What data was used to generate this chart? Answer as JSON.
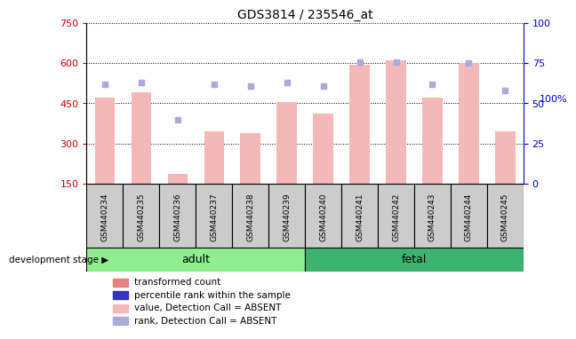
{
  "title": "GDS3814 / 235546_at",
  "samples": [
    "GSM440234",
    "GSM440235",
    "GSM440236",
    "GSM440237",
    "GSM440238",
    "GSM440239",
    "GSM440240",
    "GSM440241",
    "GSM440242",
    "GSM440243",
    "GSM440244",
    "GSM440245"
  ],
  "bar_values": [
    470,
    490,
    185,
    345,
    340,
    455,
    410,
    595,
    610,
    470,
    600,
    345
  ],
  "rank_values": [
    62,
    63,
    40,
    62,
    61,
    63,
    61,
    76,
    76,
    62,
    75,
    58
  ],
  "detection_call": [
    "ABSENT",
    "ABSENT",
    "ABSENT",
    "ABSENT",
    "ABSENT",
    "ABSENT",
    "ABSENT",
    "ABSENT",
    "ABSENT",
    "ABSENT",
    "ABSENT",
    "ABSENT"
  ],
  "group_labels": [
    "adult",
    "fetal"
  ],
  "group_ranges": [
    6,
    6
  ],
  "adult_color": "#90ee90",
  "fetal_color": "#3cb371",
  "bar_color_present": "#e88080",
  "bar_color_absent": "#f4b8b8",
  "rank_color_present": "#3333bb",
  "rank_color_absent": "#aaaadd",
  "sample_bg_color": "#cccccc",
  "ylim_left": [
    150,
    750
  ],
  "ylim_right": [
    0,
    100
  ],
  "yticks_left": [
    150,
    300,
    450,
    600,
    750
  ],
  "yticks_right": [
    0,
    25,
    50,
    75,
    100
  ],
  "ylabel_left_color": "#cc0000",
  "ylabel_right_color": "#0000cc",
  "background_color": "#ffffff",
  "plot_bg_color": "#ffffff",
  "grid_color": "#000000"
}
